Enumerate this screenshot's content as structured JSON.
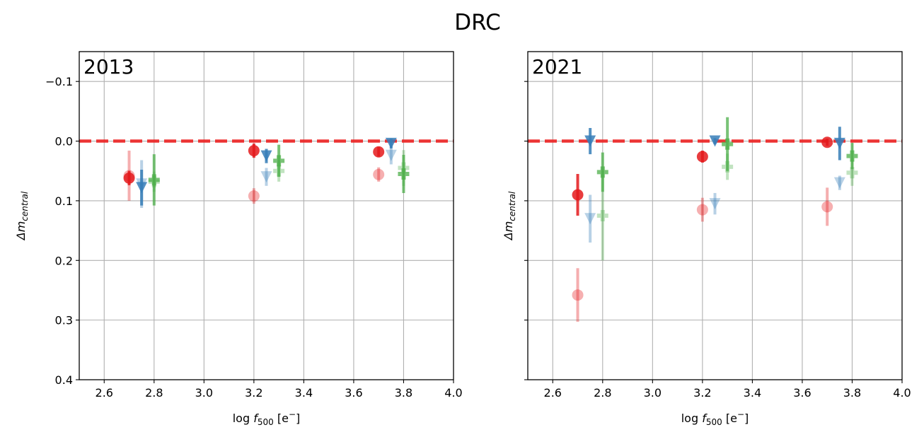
{
  "chart_data": {
    "type": "scatter",
    "title": "DRC",
    "xlim": [
      2.5,
      4.0
    ],
    "ylim": [
      0.4,
      -0.15
    ],
    "y_inverted": true,
    "xticks": [
      "2.6",
      "2.8",
      "3.0",
      "3.2",
      "3.4",
      "3.6",
      "3.8",
      "4.0"
    ],
    "yticks": [
      "−0.1",
      "0.0",
      "0.1",
      "0.2",
      "0.3",
      "0.4"
    ],
    "xtick_values": [
      2.6,
      2.8,
      3.0,
      3.2,
      3.4,
      3.6,
      3.8,
      4.0
    ],
    "ytick_values": [
      -0.1,
      0.0,
      0.1,
      0.2,
      0.3,
      0.4
    ],
    "reference_line": {
      "y": 0.0,
      "style": "dashed",
      "color": "#ee2222"
    },
    "colors": {
      "red": "#e41a1c",
      "blue": "#377eb8",
      "green": "#4daf4a"
    },
    "panels": [
      {
        "label": "2013",
        "xlabel_prefix": "log ",
        "xlabel_symbol": "f",
        "xlabel_sub": "500",
        "xlabel_unit": " [e",
        "xlabel_sup": "−",
        "xlabel_close": "]",
        "ylabel_main": "Δm",
        "ylabel_sub": "central",
        "show_ytick_labels": true,
        "series": [
          {
            "name": "circle-faded",
            "marker": "circle",
            "color": "red",
            "alpha": 0.35,
            "points": [
              [
                2.7,
                0.058,
                0.042
              ],
              [
                3.2,
                0.092,
                0.013
              ],
              [
                3.7,
                0.056,
                0.012
              ]
            ]
          },
          {
            "name": "triangle-faded",
            "marker": "triangle",
            "color": "blue",
            "alpha": 0.35,
            "points": [
              [
                2.75,
                0.072,
                0.04
              ],
              [
                3.25,
                0.06,
                0.015
              ],
              [
                3.75,
                0.024,
                0.015
              ]
            ]
          },
          {
            "name": "plus-faded",
            "marker": "plus",
            "color": "green",
            "alpha": 0.35,
            "points": [
              [
                2.8,
                0.068,
                0.017
              ],
              [
                3.3,
                0.05,
                0.018
              ],
              [
                3.8,
                0.045,
                0.03
              ]
            ]
          },
          {
            "name": "circle",
            "marker": "circle",
            "color": "red",
            "alpha": 0.85,
            "points": [
              [
                2.7,
                0.062,
                0.012
              ],
              [
                3.2,
                0.016,
                0.012
              ],
              [
                3.7,
                0.018,
                0.008
              ]
            ]
          },
          {
            "name": "triangle",
            "marker": "triangle",
            "color": "blue",
            "alpha": 0.85,
            "points": [
              [
                2.75,
                0.078,
                0.03
              ],
              [
                3.25,
                0.025,
                0.012
              ],
              [
                3.75,
                0.004,
                0.008
              ]
            ]
          },
          {
            "name": "plus",
            "marker": "plus",
            "color": "green",
            "alpha": 0.75,
            "points": [
              [
                2.8,
                0.065,
                0.043
              ],
              [
                3.3,
                0.033,
                0.027
              ],
              [
                3.8,
                0.055,
                0.032
              ]
            ]
          }
        ]
      },
      {
        "label": "2021",
        "xlabel_prefix": "log ",
        "xlabel_symbol": "f",
        "xlabel_sub": "500",
        "xlabel_unit": " [e",
        "xlabel_sup": "−",
        "xlabel_close": "]",
        "ylabel_main": "Δm",
        "ylabel_sub": "central",
        "show_ytick_labels": false,
        "series": [
          {
            "name": "circle-faded",
            "marker": "circle",
            "color": "red",
            "alpha": 0.35,
            "points": [
              [
                2.7,
                0.258,
                0.045
              ],
              [
                3.2,
                0.115,
                0.02
              ],
              [
                3.7,
                0.11,
                0.032
              ]
            ]
          },
          {
            "name": "triangle-faded",
            "marker": "triangle",
            "color": "blue",
            "alpha": 0.35,
            "points": [
              [
                2.75,
                0.13,
                0.04
              ],
              [
                3.25,
                0.105,
                0.018
              ],
              [
                3.75,
                0.07,
                0.012
              ]
            ]
          },
          {
            "name": "plus-faded",
            "marker": "plus",
            "color": "green",
            "alpha": 0.35,
            "points": [
              [
                2.8,
                0.125,
                0.075
              ],
              [
                3.3,
                0.043,
                0.022
              ],
              [
                3.8,
                0.053,
                0.022
              ]
            ]
          },
          {
            "name": "circle",
            "marker": "circle",
            "color": "red",
            "alpha": 0.85,
            "points": [
              [
                2.7,
                0.09,
                0.035
              ],
              [
                3.2,
                0.026,
                0.01
              ],
              [
                3.7,
                0.002,
                0.006
              ]
            ]
          },
          {
            "name": "triangle",
            "marker": "triangle",
            "color": "blue",
            "alpha": 0.85,
            "points": [
              [
                2.75,
                0.0,
                0.022
              ],
              [
                3.25,
                0.0,
                0.005
              ],
              [
                3.75,
                0.004,
                0.028
              ]
            ]
          },
          {
            "name": "plus",
            "marker": "plus",
            "color": "green",
            "alpha": 0.75,
            "points": [
              [
                2.8,
                0.052,
                0.033
              ],
              [
                3.3,
                0.005,
                0.045
              ],
              [
                3.8,
                0.025,
                0.022
              ]
            ]
          }
        ]
      }
    ]
  }
}
